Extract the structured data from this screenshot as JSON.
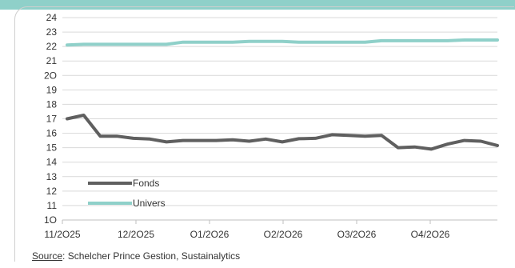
{
  "colors": {
    "banner": "#8fd0c9",
    "grid": "#d9d9d9",
    "axis": "#bfbfbf",
    "text": "#333333"
  },
  "source": {
    "label": "Source",
    "text": ": Schelcher Prince Gestion, Sustainalytics"
  },
  "chart_data": {
    "type": "line",
    "title": "",
    "xlabel": "",
    "ylabel": "",
    "ylim": [
      10,
      24
    ],
    "yticks": [
      "24",
      "23",
      "22",
      "21",
      "2O",
      "19",
      "18",
      "17",
      "16",
      "15",
      "14",
      "13",
      "12",
      "11",
      "1O"
    ],
    "xticks": [
      "11/2O25",
      "12/2O25",
      "O1/2O26",
      "O2/2O26",
      "O3/2O26",
      "O4/2O26"
    ],
    "grid": true,
    "legend_position": "bottom-left",
    "series": [
      {
        "name": "Fonds",
        "color": "#5f5f5f",
        "values": [
          17.0,
          17.25,
          15.8,
          15.8,
          15.65,
          15.6,
          15.4,
          15.5,
          15.5,
          15.5,
          15.55,
          15.45,
          15.6,
          15.4,
          15.62,
          15.65,
          15.9,
          15.85,
          15.8,
          15.85,
          15.0,
          15.05,
          14.9,
          15.25,
          15.5,
          15.45,
          15.15
        ]
      },
      {
        "name": "Univers",
        "color": "#8fd0c9",
        "values": [
          22.1,
          22.15,
          22.15,
          22.15,
          22.15,
          22.15,
          22.15,
          22.3,
          22.3,
          22.3,
          22.3,
          22.35,
          22.35,
          22.35,
          22.3,
          22.3,
          22.3,
          22.3,
          22.3,
          22.4,
          22.4,
          22.4,
          22.4,
          22.4,
          22.45,
          22.45,
          22.45
        ]
      }
    ]
  }
}
